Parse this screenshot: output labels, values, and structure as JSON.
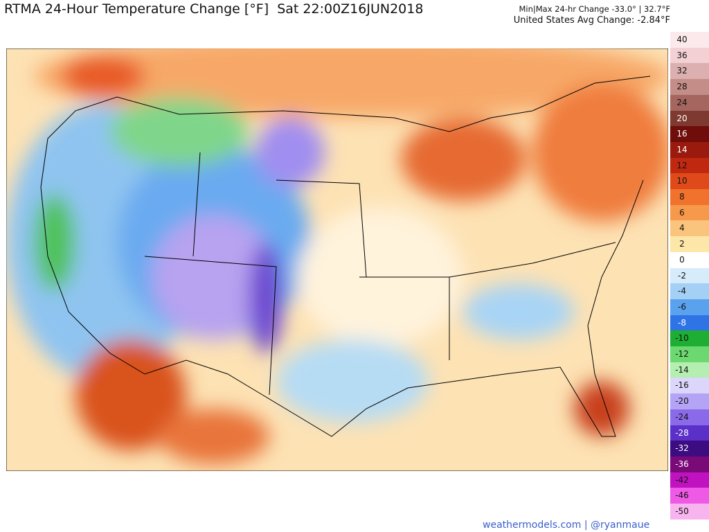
{
  "header": {
    "title": "RTMA 24-Hour Temperature Change [°F]  Sat 22:00Z16JUN2018",
    "minmax": "Min|Max 24-hr Change -33.0° | 32.7°F",
    "average": "United States Avg Change: -2.84°F"
  },
  "colorbar": {
    "labels": [
      40,
      36,
      32,
      28,
      24,
      20,
      16,
      14,
      12,
      10,
      8,
      6,
      4,
      2,
      0,
      -2,
      -4,
      -6,
      -8,
      -10,
      -12,
      -14,
      -16,
      -20,
      -24,
      -28,
      -32,
      -36,
      -42,
      -46,
      -50
    ],
    "colors": [
      "#fbe9ec",
      "#f2d0d4",
      "#dcb0b0",
      "#c48d88",
      "#a56660",
      "#7e3a30",
      "#6e0d0a",
      "#9a1a0e",
      "#c0280f",
      "#e04a1a",
      "#f0722c",
      "#f7994a",
      "#fbc47c",
      "#fde7a8",
      "#ffffff",
      "#d6ecfb",
      "#a4d0f6",
      "#5aa2ee",
      "#2f74e6",
      "#1fae34",
      "#6cd870",
      "#b4eeb0",
      "#dcd6fb",
      "#b4a4f6",
      "#8a6ae8",
      "#5a30c8",
      "#3c0c80",
      "#7a0a78",
      "#c012c0",
      "#ee5ae6",
      "#f8b4ee"
    ]
  },
  "footer": "weathermodels.com | @ryanmaue"
}
